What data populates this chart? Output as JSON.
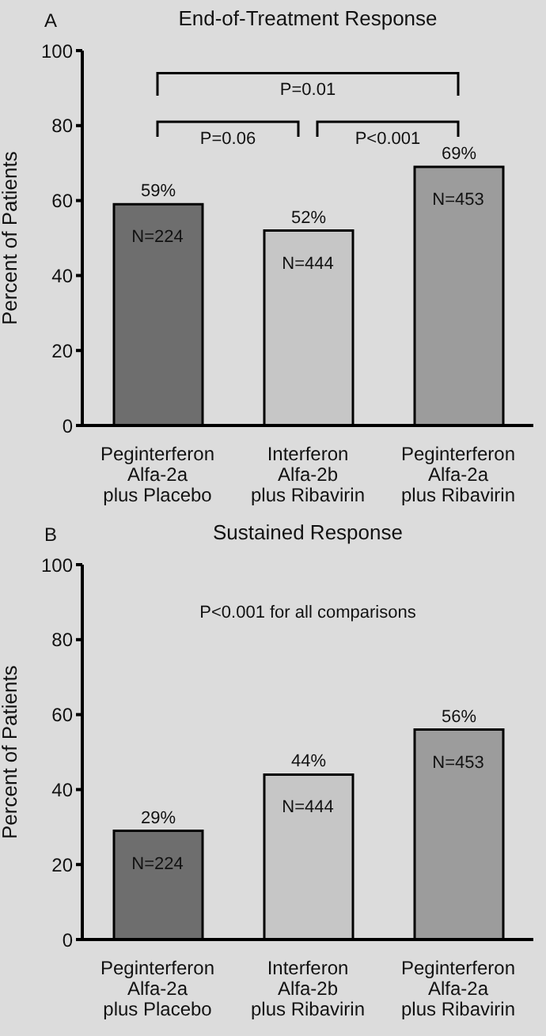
{
  "chart_data": [
    {
      "type": "bar",
      "title": "End-of-Treatment Response",
      "subtitle": "A",
      "ylabel": "Percent of Patients",
      "categories": [
        "Peginterferon Alfa-2a plus Placebo",
        "Interferon Alfa-2b plus Ribavirin",
        "Peginterferon Alfa-2a plus Ribavirin"
      ],
      "values": [
        59,
        52,
        69
      ],
      "colors": [
        "#6e6e6e",
        "#c6c6c6",
        "#9c9c9c"
      ],
      "value_labels": [
        "59%",
        "52%",
        "69%"
      ],
      "ylim": [
        0,
        100
      ],
      "yticks": [
        0,
        20,
        40,
        60,
        80,
        100
      ],
      "annotations": [
        "P=0.01",
        "P=0.06",
        "P<0.001",
        {
          "text": "N=224",
          "x": "Peginterferon Alfa-2a plus Placebo",
          "y": 59
        },
        {
          "text": "N=444",
          "x": "Interferon Alfa-2b plus Ribavirin",
          "y": 52
        },
        {
          "text": "N=453",
          "x": "Peginterferon Alfa-2a plus Ribavirin",
          "y": 69
        }
      ]
    },
    {
      "type": "bar",
      "title": "Sustained Response",
      "subtitle": "B",
      "ylabel": "Percent of Patients",
      "categories": [
        "Peginterferon Alfa-2a plus Placebo",
        "Interferon Alfa-2b plus Ribavirin",
        "Peginterferon Alfa-2a plus Ribavirin"
      ],
      "values": [
        29,
        44,
        56
      ],
      "colors": [
        "#6e6e6e",
        "#c6c6c6",
        "#9c9c9c"
      ],
      "value_labels": [
        "29%",
        "44%",
        "56%"
      ],
      "ylim": [
        0,
        100
      ],
      "yticks": [
        0,
        20,
        40,
        60,
        80,
        100
      ],
      "annotations": [
        "P<0.001 for all comparisons",
        {
          "text": "N=224",
          "x": "Peginterferon Alfa-2a plus Placebo",
          "y": 29
        },
        {
          "text": "N=444",
          "x": "Interferon Alfa-2b plus Ribavirin",
          "y": 44
        },
        {
          "text": "N=453",
          "x": "Peginterferon Alfa-2a plus Ribavirin",
          "y": 56
        }
      ]
    }
  ]
}
